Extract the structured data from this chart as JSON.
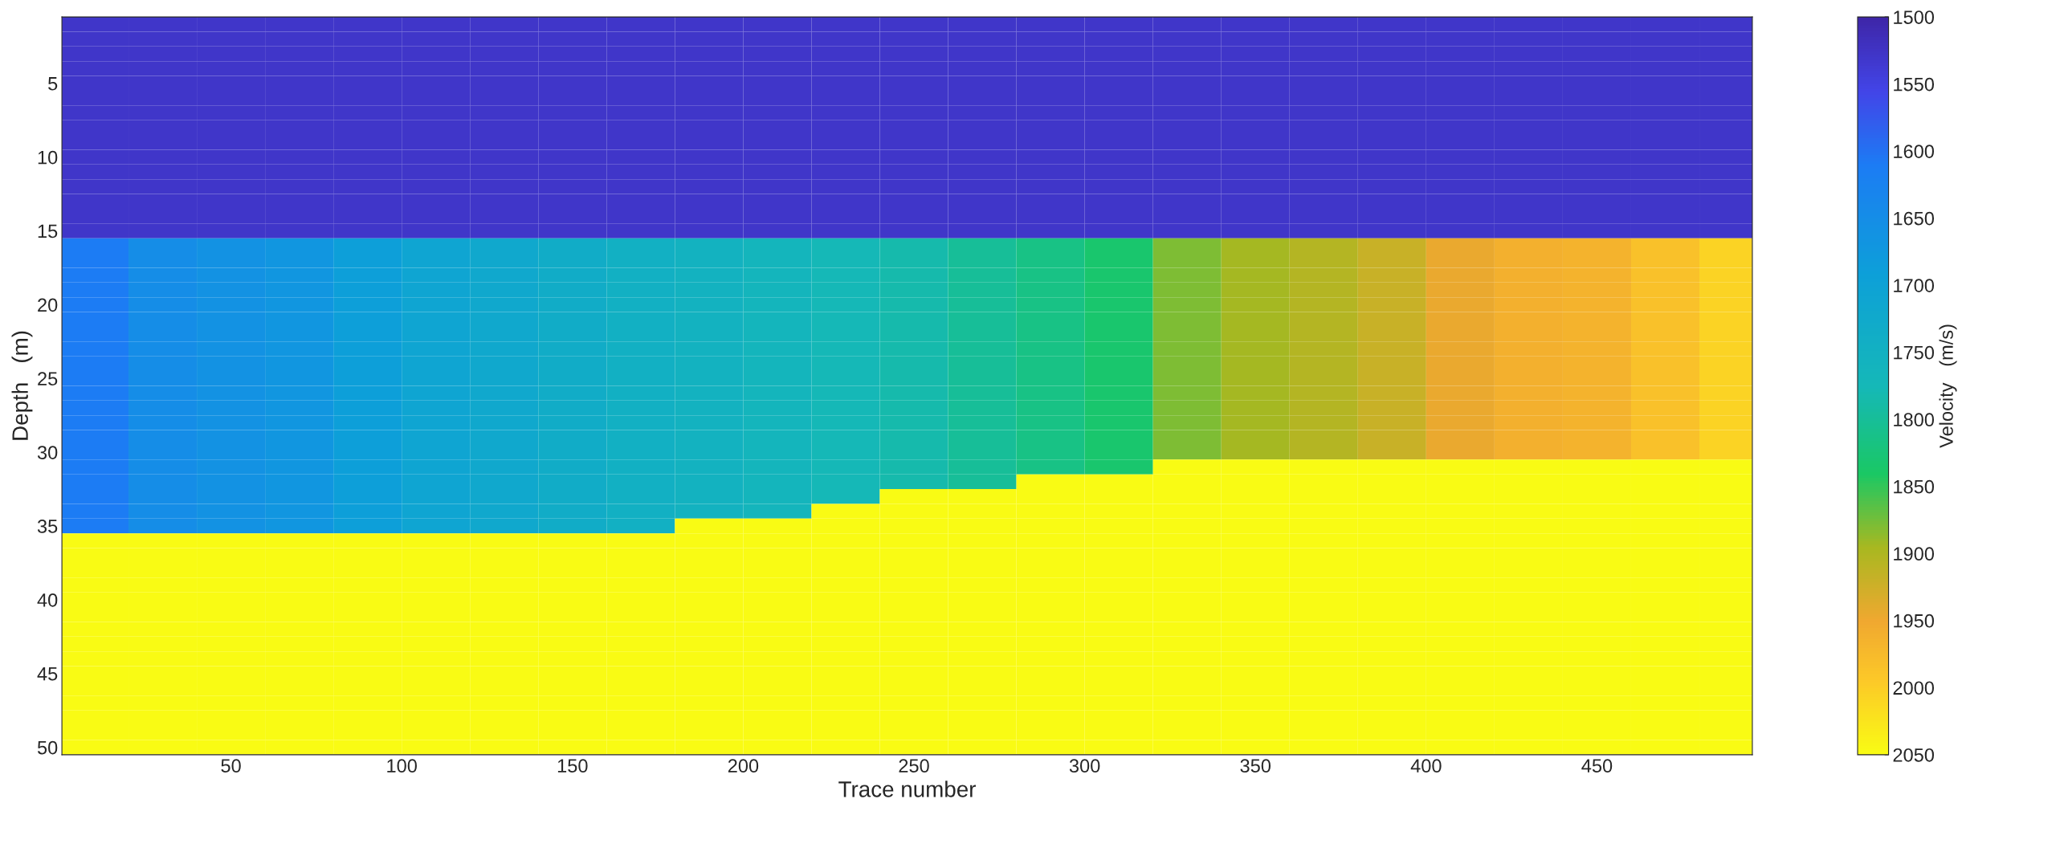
{
  "chart_data": {
    "type": "heatmap",
    "xlabel": "Trace number",
    "ylabel": "Depth   (m)",
    "clabel": "Velocity   (m/s)",
    "x": [
      10,
      30,
      50,
      70,
      90,
      110,
      130,
      150,
      170,
      190,
      210,
      230,
      250,
      270,
      290,
      310,
      330,
      350,
      370,
      390,
      410,
      430,
      450,
      470,
      490
    ],
    "y": [
      1,
      2,
      3,
      4,
      5,
      6,
      7,
      8,
      9,
      10,
      11,
      12,
      13,
      14,
      15,
      16,
      17,
      18,
      19,
      20,
      21,
      22,
      23,
      24,
      25,
      26,
      27,
      28,
      29,
      30,
      31,
      32,
      33,
      34,
      35,
      36,
      37,
      38,
      39,
      40,
      41,
      42,
      43,
      44,
      45,
      46,
      47,
      48,
      49,
      50
    ],
    "xlim": [
      0.5,
      495.5
    ],
    "ylim": [
      50.5,
      0.5
    ],
    "xticks": [
      50,
      100,
      150,
      200,
      250,
      300,
      350,
      400,
      450
    ],
    "yticks": [
      5,
      10,
      15,
      20,
      25,
      30,
      35,
      40,
      45,
      50
    ],
    "clim": [
      2050,
      1500
    ],
    "cticks": [
      1500,
      1550,
      1600,
      1650,
      1700,
      1750,
      1800,
      1850,
      1900,
      1950,
      2000,
      2050
    ],
    "cells": [
      [
        1530,
        1530,
        1530,
        1530,
        1530,
        1530,
        1530,
        1530,
        1530,
        1530,
        1530,
        1530,
        1530,
        1530,
        1530,
        1530,
        1530,
        1530,
        1530,
        1530,
        1530,
        1530,
        1530,
        1530,
        1530
      ],
      [
        1530,
        1530,
        1530,
        1530,
        1530,
        1530,
        1530,
        1530,
        1530,
        1530,
        1530,
        1530,
        1530,
        1530,
        1530,
        1530,
        1530,
        1530,
        1530,
        1530,
        1530,
        1530,
        1530,
        1530,
        1530
      ],
      [
        1530,
        1530,
        1530,
        1530,
        1530,
        1530,
        1530,
        1530,
        1530,
        1530,
        1530,
        1530,
        1530,
        1530,
        1530,
        1530,
        1530,
        1530,
        1530,
        1530,
        1530,
        1530,
        1530,
        1530,
        1530
      ],
      [
        1530,
        1530,
        1530,
        1530,
        1530,
        1530,
        1530,
        1530,
        1530,
        1530,
        1530,
        1530,
        1530,
        1530,
        1530,
        1530,
        1530,
        1530,
        1530,
        1530,
        1530,
        1530,
        1530,
        1530,
        1530
      ],
      [
        1530,
        1530,
        1530,
        1530,
        1530,
        1530,
        1530,
        1530,
        1530,
        1530,
        1530,
        1530,
        1530,
        1530,
        1530,
        1530,
        1530,
        1530,
        1530,
        1530,
        1530,
        1530,
        1530,
        1530,
        1530
      ],
      [
        1530,
        1530,
        1530,
        1530,
        1530,
        1530,
        1530,
        1530,
        1530,
        1530,
        1530,
        1530,
        1530,
        1530,
        1530,
        1530,
        1530,
        1530,
        1530,
        1530,
        1530,
        1530,
        1530,
        1530,
        1530
      ],
      [
        1530,
        1530,
        1530,
        1530,
        1530,
        1530,
        1530,
        1530,
        1530,
        1530,
        1530,
        1530,
        1530,
        1530,
        1530,
        1530,
        1530,
        1530,
        1530,
        1530,
        1530,
        1530,
        1530,
        1530,
        1530
      ],
      [
        1530,
        1530,
        1530,
        1530,
        1530,
        1530,
        1530,
        1530,
        1530,
        1530,
        1530,
        1530,
        1530,
        1530,
        1530,
        1530,
        1530,
        1530,
        1530,
        1530,
        1530,
        1530,
        1530,
        1530,
        1530
      ],
      [
        1530,
        1530,
        1530,
        1530,
        1530,
        1530,
        1530,
        1530,
        1530,
        1530,
        1530,
        1530,
        1530,
        1530,
        1530,
        1530,
        1530,
        1530,
        1530,
        1530,
        1530,
        1530,
        1530,
        1530,
        1530
      ],
      [
        1530,
        1530,
        1530,
        1530,
        1530,
        1530,
        1530,
        1530,
        1530,
        1530,
        1530,
        1530,
        1530,
        1530,
        1530,
        1530,
        1530,
        1530,
        1530,
        1530,
        1530,
        1530,
        1530,
        1530,
        1530
      ],
      [
        1530,
        1530,
        1530,
        1530,
        1530,
        1530,
        1530,
        1530,
        1530,
        1530,
        1530,
        1530,
        1530,
        1530,
        1530,
        1530,
        1530,
        1530,
        1530,
        1530,
        1530,
        1530,
        1530,
        1530,
        1530
      ],
      [
        1530,
        1530,
        1530,
        1530,
        1530,
        1530,
        1530,
        1530,
        1530,
        1530,
        1530,
        1530,
        1530,
        1530,
        1530,
        1530,
        1530,
        1530,
        1530,
        1530,
        1530,
        1530,
        1530,
        1530,
        1530
      ],
      [
        1530,
        1530,
        1530,
        1530,
        1530,
        1530,
        1530,
        1530,
        1530,
        1530,
        1530,
        1530,
        1530,
        1530,
        1530,
        1530,
        1530,
        1530,
        1530,
        1530,
        1530,
        1530,
        1530,
        1530,
        1530
      ],
      [
        1530,
        1530,
        1530,
        1530,
        1530,
        1530,
        1530,
        1530,
        1530,
        1530,
        1530,
        1530,
        1530,
        1530,
        1530,
        1530,
        1530,
        1530,
        1530,
        1530,
        1530,
        1530,
        1530,
        1530,
        1530
      ],
      [
        1530,
        1530,
        1530,
        1530,
        1530,
        1530,
        1530,
        1530,
        1530,
        1530,
        1530,
        1530,
        1530,
        1530,
        1530,
        1530,
        1530,
        1530,
        1530,
        1530,
        1530,
        1530,
        1530,
        1530,
        1530
      ],
      [
        1610,
        1650,
        1660,
        1670,
        1690,
        1710,
        1720,
        1735,
        1745,
        1755,
        1765,
        1775,
        1785,
        1800,
        1815,
        1835,
        1880,
        1895,
        1905,
        1920,
        1945,
        1960,
        1965,
        1985,
        2005
      ],
      [
        1610,
        1650,
        1660,
        1670,
        1690,
        1710,
        1720,
        1735,
        1745,
        1755,
        1765,
        1775,
        1785,
        1800,
        1815,
        1835,
        1880,
        1895,
        1905,
        1920,
        1945,
        1960,
        1965,
        1985,
        2005
      ],
      [
        1610,
        1650,
        1660,
        1670,
        1690,
        1710,
        1720,
        1735,
        1745,
        1755,
        1765,
        1775,
        1785,
        1800,
        1815,
        1835,
        1880,
        1895,
        1905,
        1920,
        1945,
        1960,
        1965,
        1985,
        2005
      ],
      [
        1610,
        1650,
        1660,
        1670,
        1690,
        1710,
        1720,
        1735,
        1745,
        1755,
        1765,
        1775,
        1785,
        1800,
        1815,
        1835,
        1880,
        1895,
        1905,
        1920,
        1945,
        1960,
        1965,
        1985,
        2005
      ],
      [
        1610,
        1650,
        1660,
        1670,
        1690,
        1710,
        1720,
        1735,
        1745,
        1755,
        1765,
        1775,
        1785,
        1800,
        1815,
        1835,
        1880,
        1895,
        1905,
        1920,
        1945,
        1960,
        1965,
        1985,
        2005
      ],
      [
        1610,
        1650,
        1660,
        1670,
        1690,
        1710,
        1720,
        1735,
        1745,
        1755,
        1765,
        1775,
        1785,
        1800,
        1815,
        1835,
        1880,
        1895,
        1905,
        1920,
        1945,
        1960,
        1965,
        1985,
        2005
      ],
      [
        1610,
        1650,
        1660,
        1670,
        1690,
        1710,
        1720,
        1735,
        1745,
        1755,
        1765,
        1775,
        1785,
        1800,
        1815,
        1835,
        1880,
        1895,
        1905,
        1920,
        1945,
        1960,
        1965,
        1985,
        2005
      ],
      [
        1610,
        1650,
        1660,
        1670,
        1690,
        1710,
        1720,
        1735,
        1745,
        1755,
        1765,
        1775,
        1785,
        1800,
        1815,
        1835,
        1880,
        1895,
        1905,
        1920,
        1945,
        1960,
        1965,
        1985,
        2005
      ],
      [
        1610,
        1650,
        1660,
        1670,
        1690,
        1710,
        1720,
        1735,
        1745,
        1755,
        1765,
        1775,
        1785,
        1800,
        1815,
        1835,
        1880,
        1895,
        1905,
        1920,
        1945,
        1960,
        1965,
        1985,
        2005
      ],
      [
        1610,
        1650,
        1660,
        1670,
        1690,
        1710,
        1720,
        1735,
        1745,
        1755,
        1765,
        1775,
        1785,
        1800,
        1815,
        1835,
        1880,
        1895,
        1905,
        1920,
        1945,
        1960,
        1965,
        1985,
        2005
      ],
      [
        1610,
        1650,
        1660,
        1670,
        1690,
        1710,
        1720,
        1735,
        1745,
        1755,
        1765,
        1775,
        1785,
        1800,
        1815,
        1835,
        1880,
        1895,
        1905,
        1920,
        1945,
        1960,
        1965,
        1985,
        2005
      ],
      [
        1610,
        1650,
        1660,
        1670,
        1690,
        1710,
        1720,
        1735,
        1745,
        1755,
        1765,
        1775,
        1785,
        1800,
        1815,
        1835,
        1880,
        1895,
        1905,
        1920,
        1945,
        1960,
        1965,
        1985,
        2005
      ],
      [
        1610,
        1650,
        1660,
        1670,
        1690,
        1710,
        1720,
        1735,
        1745,
        1755,
        1765,
        1775,
        1785,
        1800,
        1815,
        1835,
        1880,
        1895,
        1905,
        1920,
        1945,
        1960,
        1965,
        1985,
        2005
      ],
      [
        1610,
        1650,
        1660,
        1670,
        1690,
        1710,
        1720,
        1735,
        1745,
        1755,
        1765,
        1775,
        1785,
        1800,
        1815,
        1835,
        1880,
        1895,
        1905,
        1920,
        1945,
        1960,
        1965,
        1985,
        2005
      ],
      [
        1610,
        1650,
        1660,
        1670,
        1690,
        1710,
        1720,
        1735,
        1745,
        1755,
        1765,
        1775,
        1785,
        1800,
        1815,
        1835,
        1880,
        1895,
        1905,
        1920,
        1945,
        1960,
        1965,
        1985,
        2005
      ],
      [
        1610,
        1650,
        1660,
        1670,
        1690,
        1710,
        1720,
        1735,
        1745,
        1755,
        1765,
        1775,
        1785,
        1800,
        1815,
        1835,
        2050,
        2050,
        2050,
        2050,
        2050,
        2050,
        2050,
        2050,
        2050
      ],
      [
        1610,
        1650,
        1660,
        1670,
        1690,
        1710,
        1720,
        1735,
        1745,
        1755,
        1765,
        1775,
        1785,
        1800,
        2050,
        2050,
        2050,
        2050,
        2050,
        2050,
        2050,
        2050,
        2050,
        2050,
        2050
      ],
      [
        1610,
        1650,
        1660,
        1670,
        1690,
        1710,
        1720,
        1735,
        1745,
        1755,
        1765,
        1775,
        2050,
        2050,
        2050,
        2050,
        2050,
        2050,
        2050,
        2050,
        2050,
        2050,
        2050,
        2050,
        2050
      ],
      [
        1610,
        1650,
        1660,
        1670,
        1690,
        1710,
        1720,
        1735,
        1745,
        1755,
        1765,
        2050,
        2050,
        2050,
        2050,
        2050,
        2050,
        2050,
        2050,
        2050,
        2050,
        2050,
        2050,
        2050,
        2050
      ],
      [
        1610,
        1650,
        1660,
        1670,
        1690,
        1710,
        1720,
        1735,
        1745,
        2050,
        2050,
        2050,
        2050,
        2050,
        2050,
        2050,
        2050,
        2050,
        2050,
        2050,
        2050,
        2050,
        2050,
        2050,
        2050
      ],
      [
        2050,
        2050,
        2050,
        2050,
        2050,
        2050,
        2050,
        2050,
        2050,
        2050,
        2050,
        2050,
        2050,
        2050,
        2050,
        2050,
        2050,
        2050,
        2050,
        2050,
        2050,
        2050,
        2050,
        2050,
        2050
      ],
      [
        2050,
        2050,
        2050,
        2050,
        2050,
        2050,
        2050,
        2050,
        2050,
        2050,
        2050,
        2050,
        2050,
        2050,
        2050,
        2050,
        2050,
        2050,
        2050,
        2050,
        2050,
        2050,
        2050,
        2050,
        2050
      ],
      [
        2050,
        2050,
        2050,
        2050,
        2050,
        2050,
        2050,
        2050,
        2050,
        2050,
        2050,
        2050,
        2050,
        2050,
        2050,
        2050,
        2050,
        2050,
        2050,
        2050,
        2050,
        2050,
        2050,
        2050,
        2050
      ],
      [
        2050,
        2050,
        2050,
        2050,
        2050,
        2050,
        2050,
        2050,
        2050,
        2050,
        2050,
        2050,
        2050,
        2050,
        2050,
        2050,
        2050,
        2050,
        2050,
        2050,
        2050,
        2050,
        2050,
        2050,
        2050
      ],
      [
        2050,
        2050,
        2050,
        2050,
        2050,
        2050,
        2050,
        2050,
        2050,
        2050,
        2050,
        2050,
        2050,
        2050,
        2050,
        2050,
        2050,
        2050,
        2050,
        2050,
        2050,
        2050,
        2050,
        2050,
        2050
      ],
      [
        2050,
        2050,
        2050,
        2050,
        2050,
        2050,
        2050,
        2050,
        2050,
        2050,
        2050,
        2050,
        2050,
        2050,
        2050,
        2050,
        2050,
        2050,
        2050,
        2050,
        2050,
        2050,
        2050,
        2050,
        2050
      ],
      [
        2050,
        2050,
        2050,
        2050,
        2050,
        2050,
        2050,
        2050,
        2050,
        2050,
        2050,
        2050,
        2050,
        2050,
        2050,
        2050,
        2050,
        2050,
        2050,
        2050,
        2050,
        2050,
        2050,
        2050,
        2050
      ],
      [
        2050,
        2050,
        2050,
        2050,
        2050,
        2050,
        2050,
        2050,
        2050,
        2050,
        2050,
        2050,
        2050,
        2050,
        2050,
        2050,
        2050,
        2050,
        2050,
        2050,
        2050,
        2050,
        2050,
        2050,
        2050
      ],
      [
        2050,
        2050,
        2050,
        2050,
        2050,
        2050,
        2050,
        2050,
        2050,
        2050,
        2050,
        2050,
        2050,
        2050,
        2050,
        2050,
        2050,
        2050,
        2050,
        2050,
        2050,
        2050,
        2050,
        2050,
        2050
      ],
      [
        2050,
        2050,
        2050,
        2050,
        2050,
        2050,
        2050,
        2050,
        2050,
        2050,
        2050,
        2050,
        2050,
        2050,
        2050,
        2050,
        2050,
        2050,
        2050,
        2050,
        2050,
        2050,
        2050,
        2050,
        2050
      ],
      [
        2050,
        2050,
        2050,
        2050,
        2050,
        2050,
        2050,
        2050,
        2050,
        2050,
        2050,
        2050,
        2050,
        2050,
        2050,
        2050,
        2050,
        2050,
        2050,
        2050,
        2050,
        2050,
        2050,
        2050,
        2050
      ],
      [
        2050,
        2050,
        2050,
        2050,
        2050,
        2050,
        2050,
        2050,
        2050,
        2050,
        2050,
        2050,
        2050,
        2050,
        2050,
        2050,
        2050,
        2050,
        2050,
        2050,
        2050,
        2050,
        2050,
        2050,
        2050
      ],
      [
        2050,
        2050,
        2050,
        2050,
        2050,
        2050,
        2050,
        2050,
        2050,
        2050,
        2050,
        2050,
        2050,
        2050,
        2050,
        2050,
        2050,
        2050,
        2050,
        2050,
        2050,
        2050,
        2050,
        2050,
        2050
      ],
      [
        2050,
        2050,
        2050,
        2050,
        2050,
        2050,
        2050,
        2050,
        2050,
        2050,
        2050,
        2050,
        2050,
        2050,
        2050,
        2050,
        2050,
        2050,
        2050,
        2050,
        2050,
        2050,
        2050,
        2050,
        2050
      ],
      [
        2050,
        2050,
        2050,
        2050,
        2050,
        2050,
        2050,
        2050,
        2050,
        2050,
        2050,
        2050,
        2050,
        2050,
        2050,
        2050,
        2050,
        2050,
        2050,
        2050,
        2050,
        2050,
        2050,
        2050,
        2050
      ]
    ]
  }
}
